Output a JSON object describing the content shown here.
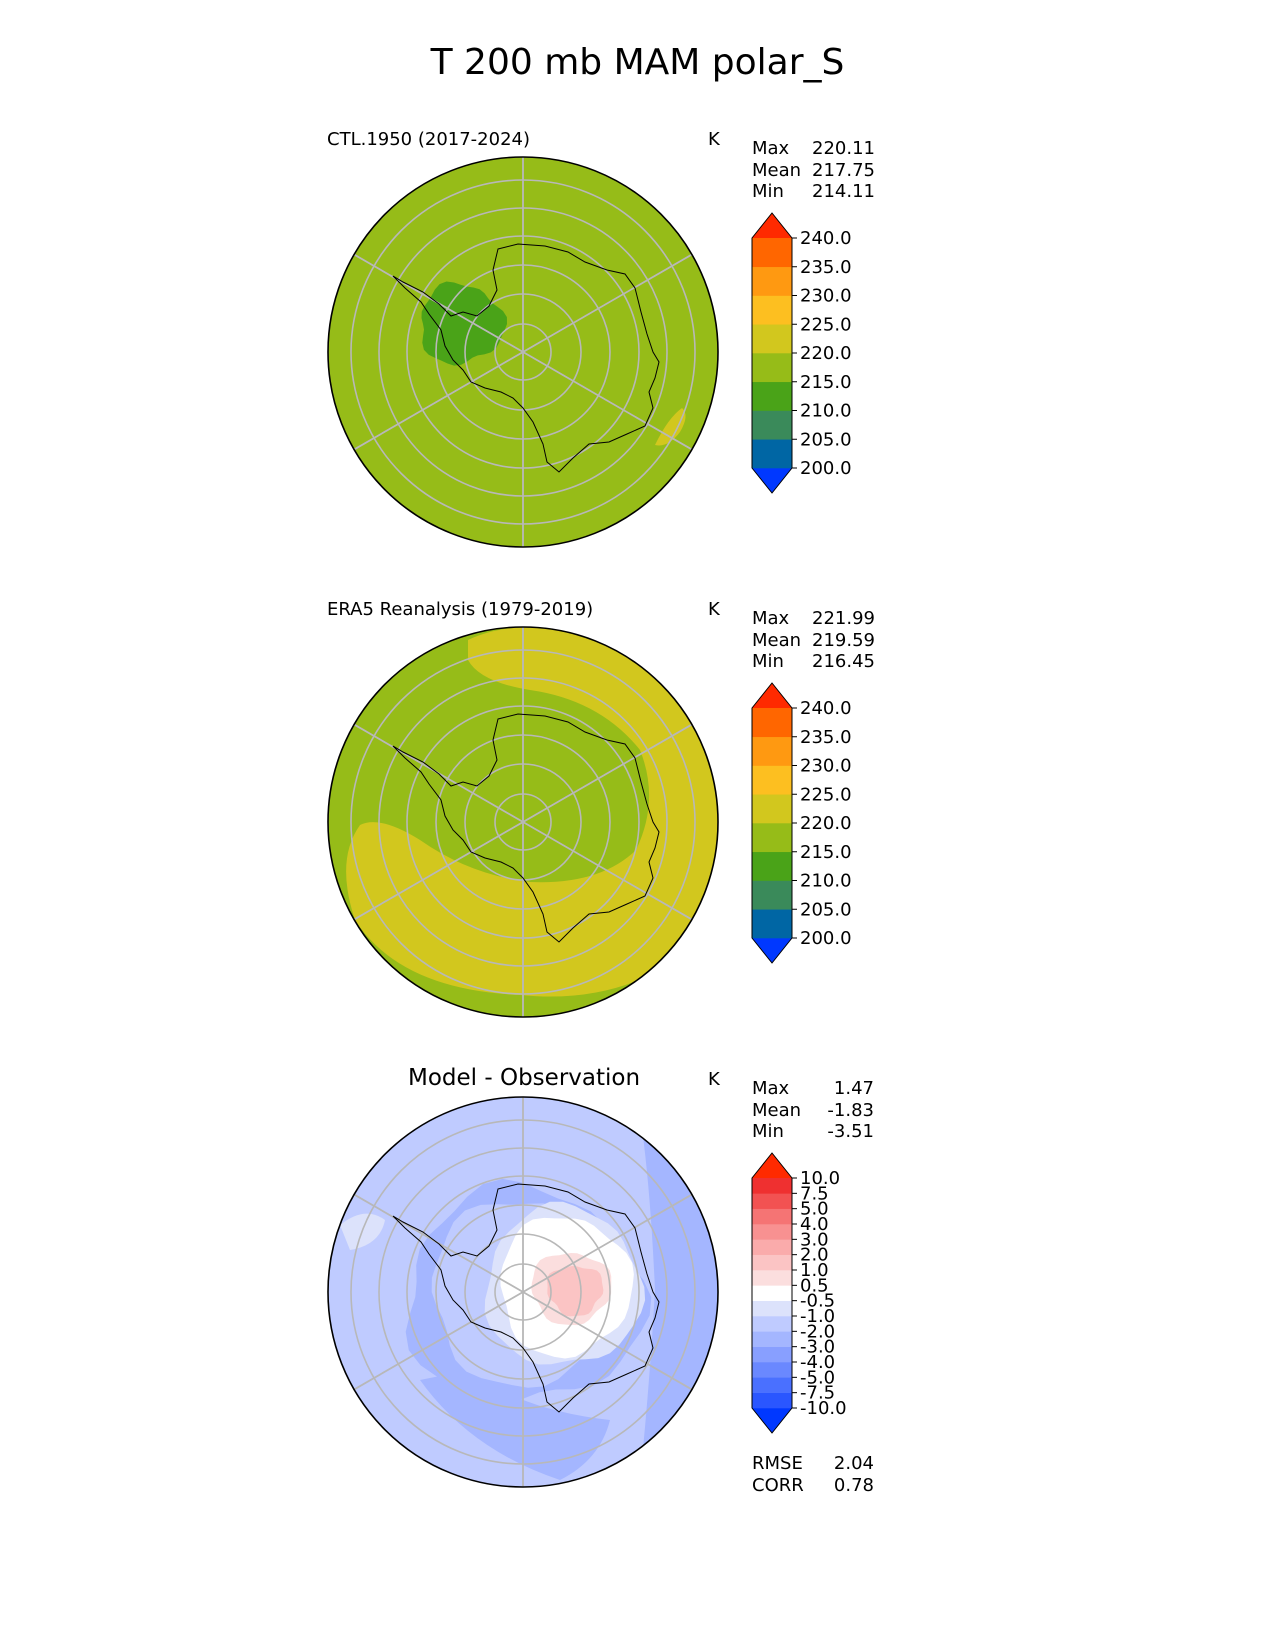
{
  "figure": {
    "title": "T 200 mb MAM polar_S"
  },
  "panels": [
    {
      "title": "CTL.1950 (2017-2024)",
      "units": "K",
      "stats": [
        {
          "label": "Max",
          "value": "220.11"
        },
        {
          "label": "Mean",
          "value": "217.75"
        },
        {
          "label": "Min",
          "value": "214.11"
        }
      ]
    },
    {
      "title": "ERA5 Reanalysis (1979-2019)",
      "units": "K",
      "stats": [
        {
          "label": "Max",
          "value": "221.99"
        },
        {
          "label": "Mean",
          "value": "219.59"
        },
        {
          "label": "Min",
          "value": "216.45"
        }
      ]
    },
    {
      "title": "Model - Observation",
      "units": "K",
      "stats": [
        {
          "label": "Max",
          "value": "1.47"
        },
        {
          "label": "Mean",
          "value": "-1.83"
        },
        {
          "label": "Min",
          "value": "-3.51"
        }
      ],
      "extra_stats": [
        {
          "label": "RMSE",
          "value": "2.04"
        },
        {
          "label": "CORR",
          "value": "0.78"
        }
      ]
    }
  ],
  "chart_data": [
    {
      "type": "heatmap",
      "projection": "south-polar-stereographic",
      "title": "CTL.1950 (2017-2024)",
      "units": "K",
      "colorbar": {
        "levels": [
          200.0,
          205.0,
          210.0,
          215.0,
          220.0,
          225.0,
          230.0,
          235.0,
          240.0
        ],
        "tick_labels": [
          "200.0",
          "205.0",
          "210.0",
          "215.0",
          "220.0",
          "225.0",
          "230.0",
          "235.0",
          "240.0"
        ],
        "colors": [
          "#0038ff",
          "#0066a4",
          "#3a8a5a",
          "#4aa318",
          "#96bc18",
          "#d2c71e",
          "#fdbf20",
          "#ff9911",
          "#ff6600",
          "#ff2a00"
        ],
        "extend": "both"
      },
      "field": {
        "background_band": "215-220",
        "features": [
          {
            "band": "210-215",
            "region": "Antarctic Peninsula / Weddell side"
          },
          {
            "band": "220-225",
            "region": "small patch off East Antarctic coast"
          }
        ]
      }
    },
    {
      "type": "heatmap",
      "projection": "south-polar-stereographic",
      "title": "ERA5 Reanalysis (1979-2019)",
      "units": "K",
      "colorbar": {
        "levels": [
          200.0,
          205.0,
          210.0,
          215.0,
          220.0,
          225.0,
          230.0,
          235.0,
          240.0
        ],
        "tick_labels": [
          "200.0",
          "205.0",
          "210.0",
          "215.0",
          "220.0",
          "225.0",
          "230.0",
          "235.0",
          "240.0"
        ],
        "colors": [
          "#0038ff",
          "#0066a4",
          "#3a8a5a",
          "#4aa318",
          "#96bc18",
          "#d2c71e",
          "#fdbf20",
          "#ff9911",
          "#ff6600",
          "#ff2a00"
        ],
        "extend": "both"
      },
      "field": {
        "background_band": "215-220",
        "features": [
          {
            "band": "220-225",
            "region": "warm ring encircling Antarctica at mid latitudes"
          }
        ]
      }
    },
    {
      "type": "heatmap",
      "projection": "south-polar-stereographic",
      "title": "Model - Observation",
      "units": "K",
      "colorbar": {
        "levels": [
          -10.0,
          -7.5,
          -5.0,
          -4.0,
          -3.0,
          -2.0,
          -1.0,
          -0.5,
          0.5,
          1.0,
          2.0,
          3.0,
          4.0,
          5.0,
          7.5,
          10.0
        ],
        "tick_labels": [
          "-10.0",
          "-7.5",
          "-5.0",
          "-4.0",
          "-3.0",
          "-2.0",
          "-1.0",
          "-0.5",
          "0.5",
          "1.0",
          "2.0",
          "3.0",
          "4.0",
          "5.0",
          "7.5",
          "10.0"
        ],
        "colors": [
          "#0038ff",
          "#2a56ff",
          "#4a70ff",
          "#6a88ff",
          "#889fff",
          "#a4b6ff",
          "#bfcbff",
          "#dce2fb",
          "#ffffff",
          "#fbdede",
          "#fbc4c4",
          "#faabab",
          "#f89191",
          "#f57474",
          "#f25252",
          "#ef3030",
          "#ff2a00"
        ],
        "extend": "both"
      },
      "field": {
        "background_band": "-2.0 to -1.0",
        "features": [
          {
            "band": "-3.0 to -2.0",
            "region": "ring around the continent"
          },
          {
            "band": "-0.5 to 0.5",
            "region": "over the pole / East Antarctic interior"
          },
          {
            "band": "1.0 to 2.0",
            "region": "small positive core near the pole"
          }
        ]
      }
    }
  ]
}
